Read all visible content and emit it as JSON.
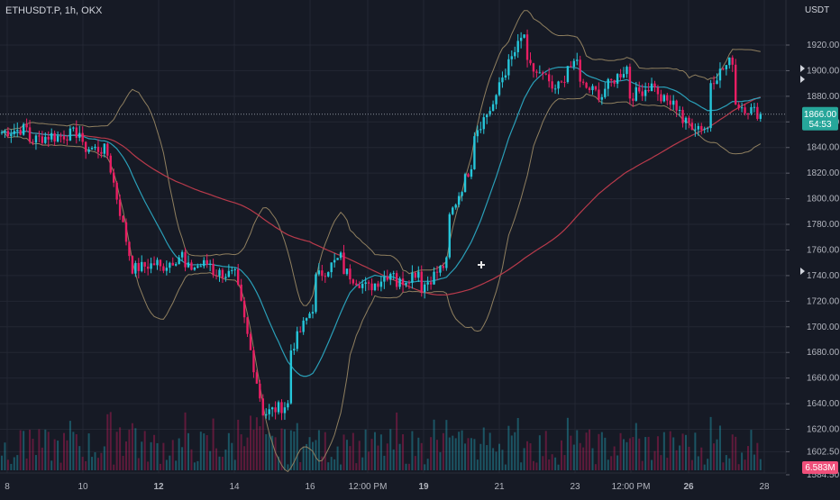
{
  "header": {
    "symbol": "ETHUSDT.P, 1h, OKX",
    "currency": "USDT"
  },
  "price_badge": {
    "value": "1866.00",
    "countdown": "54:53",
    "color": "#26a69a"
  },
  "volume_badge": {
    "value": "6.583M",
    "color": "#ef4f7a"
  },
  "colors": {
    "background": "#161a25",
    "up": "#26c6da",
    "down": "#e91e63",
    "ma_slow": "#b83a4b",
    "ma_fast": "#2a9fb8",
    "bollinger": "#8f7f5f",
    "grid": "#232733"
  },
  "chart_data": {
    "type": "candlestick",
    "y_ticks": [
      1920,
      1900,
      1880,
      1860,
      1840,
      1820,
      1800,
      1780,
      1760,
      1740,
      1720,
      1700,
      1680,
      1660,
      1640,
      1620,
      1602.5,
      1584.5
    ],
    "y_tick_labels": [
      "1920.00",
      "1900.00",
      "1880.00",
      "1860.00",
      "1840.00",
      "1820.00",
      "1800.00",
      "1780.00",
      "1760.00",
      "1740.00",
      "1720.00",
      "1700.00",
      "1680.00",
      "1660.00",
      "1640.00",
      "1620.00",
      "1602.50",
      "1584.50"
    ],
    "x_tick_labels": [
      "8",
      "10",
      "12",
      "14",
      "16",
      "12:00 PM",
      "19",
      "21",
      "23",
      "12:00 PM",
      "26",
      "28"
    ],
    "bold_x_labels": [
      "12",
      "19",
      "26"
    ],
    "current_price": 1866.0,
    "volume_current": "6.583M",
    "anchor_points": [
      [
        1850,
        1852
      ],
      [
        1855,
        1845
      ],
      [
        1850,
        1848
      ],
      [
        1852,
        1840
      ],
      [
        1838,
        1838
      ],
      [
        1745,
        1745
      ],
      [
        1750,
        1745
      ],
      [
        1758,
        1745
      ],
      [
        1750,
        1743
      ],
      [
        1740,
        1732
      ],
      [
        1632,
        1632
      ],
      [
        1640,
        1680
      ],
      [
        1720,
        1738
      ],
      [
        1755,
        1745
      ],
      [
        1730,
        1730
      ],
      [
        1745,
        1732
      ],
      [
        1745,
        1730
      ],
      [
        1750,
        1780
      ],
      [
        1830,
        1850
      ],
      [
        1880,
        1890
      ],
      [
        1930,
        1905
      ],
      [
        1890,
        1880
      ],
      [
        1910,
        1890
      ],
      [
        1880,
        1885
      ],
      [
        1905,
        1880
      ],
      [
        1890,
        1880
      ],
      [
        1870,
        1860
      ],
      [
        1855,
        1890
      ],
      [
        1910,
        1875
      ],
      [
        1866,
        1866
      ]
    ]
  }
}
